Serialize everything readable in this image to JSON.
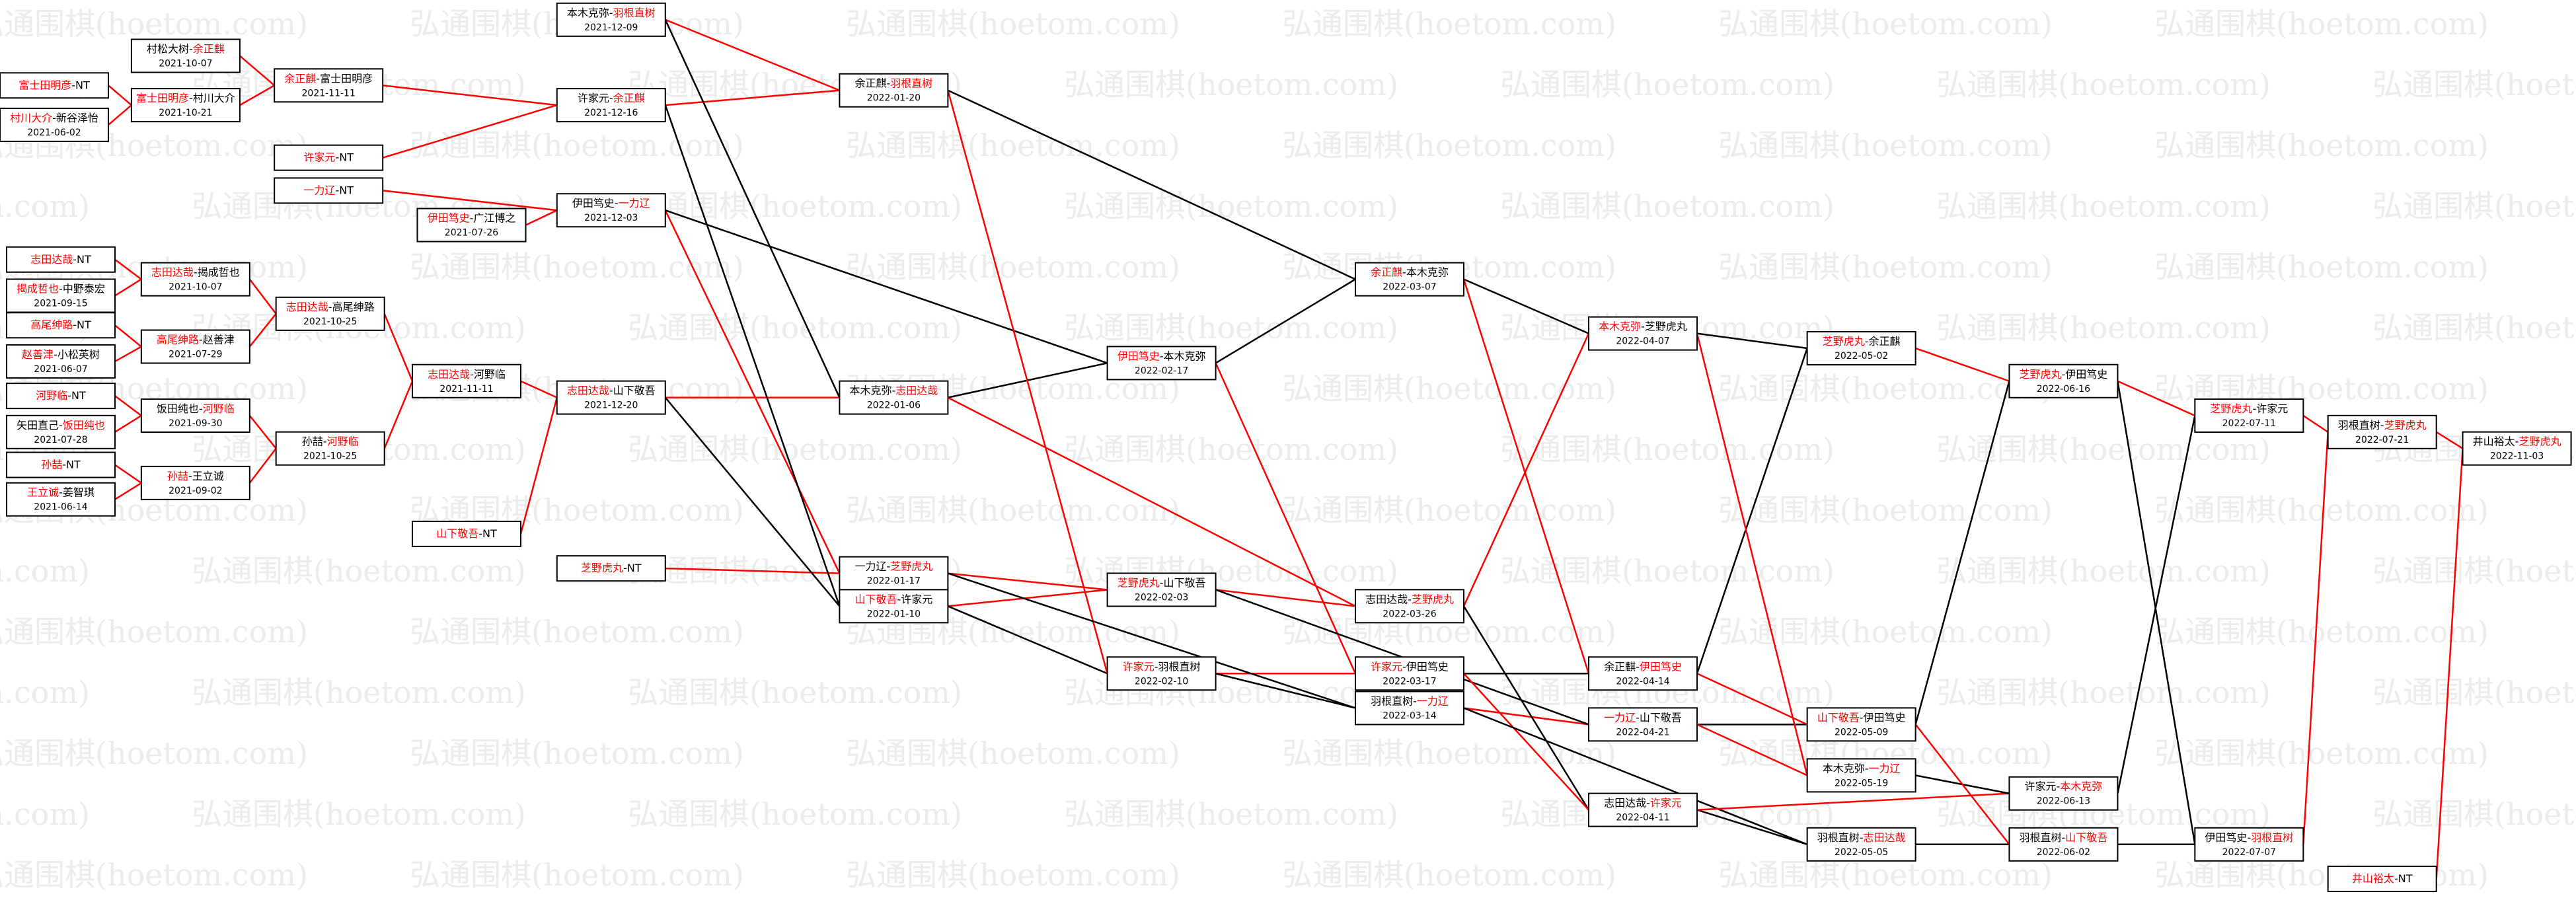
{
  "watermark": "弘通围棋(hoetom.com)",
  "separator": "-",
  "nodes": [
    {
      "players": [
        {
          "name": "富士田明彦",
          "color": "#ff0000"
        },
        {
          "name": "NT",
          "color": "#000000"
        }
      ]
    },
    {
      "players": [
        {
          "name": "村川大介",
          "color": "#ff0000"
        },
        {
          "name": "新谷泽怡",
          "color": "#000000"
        }
      ],
      "date": "2021-06-02"
    },
    {
      "players": [
        {
          "name": "村松大树",
          "color": "#000000"
        },
        {
          "name": "余正麒",
          "color": "#ff0000"
        }
      ],
      "date": "2021-10-07"
    },
    {
      "players": [
        {
          "name": "富士田明彦",
          "color": "#ff0000"
        },
        {
          "name": "村川大介",
          "color": "#000000"
        }
      ],
      "date": "2021-10-21"
    },
    {
      "players": [
        {
          "name": "余正麒",
          "color": "#ff0000"
        },
        {
          "name": "富士田明彦",
          "color": "#000000"
        }
      ],
      "date": "2021-11-11"
    },
    {
      "players": [
        {
          "name": "许家元",
          "color": "#ff0000"
        },
        {
          "name": "NT",
          "color": "#000000"
        }
      ]
    },
    {
      "players": [
        {
          "name": "一力辽",
          "color": "#ff0000"
        },
        {
          "name": "NT",
          "color": "#000000"
        }
      ]
    },
    {
      "players": [
        {
          "name": "伊田笃史",
          "color": "#ff0000"
        },
        {
          "name": "广江博之",
          "color": "#000000"
        }
      ],
      "date": "2021-07-26"
    },
    {
      "players": [
        {
          "name": "本木克弥",
          "color": "#000000"
        },
        {
          "name": "羽根直树",
          "color": "#ff0000"
        }
      ],
      "date": "2021-12-09"
    },
    {
      "players": [
        {
          "name": "许家元",
          "color": "#000000"
        },
        {
          "name": "余正麒",
          "color": "#ff0000"
        }
      ],
      "date": "2021-12-16"
    },
    {
      "players": [
        {
          "name": "伊田笃史",
          "color": "#000000"
        },
        {
          "name": "一力辽",
          "color": "#ff0000"
        }
      ],
      "date": "2021-12-03"
    },
    {
      "players": [
        {
          "name": "余正麒",
          "color": "#000000"
        },
        {
          "name": "羽根直树",
          "color": "#ff0000"
        }
      ],
      "date": "2022-01-20"
    },
    {
      "players": [
        {
          "name": "余正麒",
          "color": "#ff0000"
        },
        {
          "name": "本木克弥",
          "color": "#000000"
        }
      ],
      "date": "2022-03-07"
    },
    {
      "players": [
        {
          "name": "志田达哉",
          "color": "#ff0000"
        },
        {
          "name": "NT",
          "color": "#000000"
        }
      ]
    },
    {
      "players": [
        {
          "name": "揭成哲也",
          "color": "#ff0000"
        },
        {
          "name": "中野泰宏",
          "color": "#000000"
        }
      ],
      "date": "2021-09-15"
    },
    {
      "players": [
        {
          "name": "高尾绅路",
          "color": "#ff0000"
        },
        {
          "name": "NT",
          "color": "#000000"
        }
      ]
    },
    {
      "players": [
        {
          "name": "赵善津",
          "color": "#ff0000"
        },
        {
          "name": "小松英树",
          "color": "#000000"
        }
      ],
      "date": "2021-06-07"
    },
    {
      "players": [
        {
          "name": "河野临",
          "color": "#ff0000"
        },
        {
          "name": "NT",
          "color": "#000000"
        }
      ]
    },
    {
      "players": [
        {
          "name": "矢田直己",
          "color": "#000000"
        },
        {
          "name": "饭田纯也",
          "color": "#ff0000"
        }
      ],
      "date": "2021-07-28"
    },
    {
      "players": [
        {
          "name": "孙喆",
          "color": "#ff0000"
        },
        {
          "name": "NT",
          "color": "#000000"
        }
      ]
    },
    {
      "players": [
        {
          "name": "王立诚",
          "color": "#ff0000"
        },
        {
          "name": "姜智琪",
          "color": "#000000"
        }
      ],
      "date": "2021-06-14"
    },
    {
      "players": [
        {
          "name": "志田达哉",
          "color": "#ff0000"
        },
        {
          "name": "揭成哲也",
          "color": "#000000"
        }
      ],
      "date": "2021-10-07"
    },
    {
      "players": [
        {
          "name": "高尾绅路",
          "color": "#ff0000"
        },
        {
          "name": "赵善津",
          "color": "#000000"
        }
      ],
      "date": "2021-07-29"
    },
    {
      "players": [
        {
          "name": "饭田纯也",
          "color": "#000000"
        },
        {
          "name": "河野临",
          "color": "#ff0000"
        }
      ],
      "date": "2021-09-30"
    },
    {
      "players": [
        {
          "name": "孙喆",
          "color": "#ff0000"
        },
        {
          "name": "王立诚",
          "color": "#000000"
        }
      ],
      "date": "2021-09-02"
    },
    {
      "players": [
        {
          "name": "志田达哉",
          "color": "#ff0000"
        },
        {
          "name": "高尾绅路",
          "color": "#000000"
        }
      ],
      "date": "2021-10-25"
    },
    {
      "players": [
        {
          "name": "孙喆",
          "color": "#000000"
        },
        {
          "name": "河野临",
          "color": "#ff0000"
        }
      ],
      "date": "2021-10-25"
    },
    {
      "players": [
        {
          "name": "志田达哉",
          "color": "#ff0000"
        },
        {
          "name": "河野临",
          "color": "#000000"
        }
      ],
      "date": "2021-11-11"
    },
    {
      "players": [
        {
          "name": "山下敬吾",
          "color": "#ff0000"
        },
        {
          "name": "NT",
          "color": "#000000"
        }
      ]
    },
    {
      "players": [
        {
          "name": "志田达哉",
          "color": "#ff0000"
        },
        {
          "name": "山下敬吾",
          "color": "#000000"
        }
      ],
      "date": "2021-12-20"
    },
    {
      "players": [
        {
          "name": "芝野虎丸",
          "color": "#ff0000"
        },
        {
          "name": "NT",
          "color": "#000000"
        }
      ]
    },
    {
      "players": [
        {
          "name": "本木克弥",
          "color": "#000000"
        },
        {
          "name": "志田达哉",
          "color": "#ff0000"
        }
      ],
      "date": "2022-01-06"
    },
    {
      "players": [
        {
          "name": "一力辽",
          "color": "#000000"
        },
        {
          "name": "芝野虎丸",
          "color": "#ff0000"
        }
      ],
      "date": "2022-01-17"
    },
    {
      "players": [
        {
          "name": "山下敬吾",
          "color": "#ff0000"
        },
        {
          "name": "许家元",
          "color": "#000000"
        }
      ],
      "date": "2022-01-10"
    },
    {
      "players": [
        {
          "name": "伊田笃史",
          "color": "#ff0000"
        },
        {
          "name": "本木克弥",
          "color": "#000000"
        }
      ],
      "date": "2022-02-17"
    },
    {
      "players": [
        {
          "name": "芝野虎丸",
          "color": "#ff0000"
        },
        {
          "name": "山下敬吾",
          "color": "#000000"
        }
      ],
      "date": "2022-02-03"
    },
    {
      "players": [
        {
          "name": "许家元",
          "color": "#ff0000"
        },
        {
          "name": "羽根直树",
          "color": "#000000"
        }
      ],
      "date": "2022-02-10"
    },
    {
      "players": [
        {
          "name": "志田达哉",
          "color": "#000000"
        },
        {
          "name": "芝野虎丸",
          "color": "#ff0000"
        }
      ],
      "date": "2022-03-26"
    },
    {
      "players": [
        {
          "name": "许家元",
          "color": "#ff0000"
        },
        {
          "name": "伊田笃史",
          "color": "#000000"
        }
      ],
      "date": "2022-03-17"
    },
    {
      "players": [
        {
          "name": "羽根直树",
          "color": "#000000"
        },
        {
          "name": "一力辽",
          "color": "#ff0000"
        }
      ],
      "date": "2022-03-14"
    },
    {
      "players": [
        {
          "name": "本木克弥",
          "color": "#ff0000"
        },
        {
          "name": "芝野虎丸",
          "color": "#000000"
        }
      ],
      "date": "2022-04-07"
    },
    {
      "players": [
        {
          "name": "余正麒",
          "color": "#000000"
        },
        {
          "name": "伊田笃史",
          "color": "#ff0000"
        }
      ],
      "date": "2022-04-14"
    },
    {
      "players": [
        {
          "name": "一力辽",
          "color": "#ff0000"
        },
        {
          "name": "山下敬吾",
          "color": "#000000"
        }
      ],
      "date": "2022-04-21"
    },
    {
      "players": [
        {
          "name": "志田达哉",
          "color": "#000000"
        },
        {
          "name": "许家元",
          "color": "#ff0000"
        }
      ],
      "date": "2022-04-11"
    },
    {
      "players": [
        {
          "name": "芝野虎丸",
          "color": "#ff0000"
        },
        {
          "name": "余正麒",
          "color": "#000000"
        }
      ],
      "date": "2022-05-02"
    },
    {
      "players": [
        {
          "name": "山下敬吾",
          "color": "#ff0000"
        },
        {
          "name": "伊田笃史",
          "color": "#000000"
        }
      ],
      "date": "2022-05-09"
    },
    {
      "players": [
        {
          "name": "本木克弥",
          "color": "#000000"
        },
        {
          "name": "一力辽",
          "color": "#ff0000"
        }
      ],
      "date": "2022-05-19"
    },
    {
      "players": [
        {
          "name": "羽根直树",
          "color": "#000000"
        },
        {
          "name": "志田达哉",
          "color": "#ff0000"
        }
      ],
      "date": "2022-05-05"
    },
    {
      "players": [
        {
          "name": "芝野虎丸",
          "color": "#ff0000"
        },
        {
          "name": "伊田笃史",
          "color": "#000000"
        }
      ],
      "date": "2022-06-16"
    },
    {
      "players": [
        {
          "name": "许家元",
          "color": "#000000"
        },
        {
          "name": "本木克弥",
          "color": "#ff0000"
        }
      ],
      "date": "2022-06-13"
    },
    {
      "players": [
        {
          "name": "羽根直树",
          "color": "#000000"
        },
        {
          "name": "山下敬吾",
          "color": "#ff0000"
        }
      ],
      "date": "2022-06-02"
    },
    {
      "players": [
        {
          "name": "芝野虎丸",
          "color": "#ff0000"
        },
        {
          "name": "许家元",
          "color": "#000000"
        }
      ],
      "date": "2022-07-11"
    },
    {
      "players": [
        {
          "name": "伊田笃史",
          "color": "#000000"
        },
        {
          "name": "羽根直树",
          "color": "#ff0000"
        }
      ],
      "date": "2022-07-07"
    },
    {
      "players": [
        {
          "name": "羽根直树",
          "color": "#000000"
        },
        {
          "name": "芝野虎丸",
          "color": "#ff0000"
        }
      ],
      "date": "2022-07-21"
    },
    {
      "players": [
        {
          "name": "井山裕太",
          "color": "#000000"
        },
        {
          "name": "芝野虎丸",
          "color": "#ff0000"
        }
      ],
      "date": "2022-11-03"
    },
    {
      "players": [
        {
          "name": "井山裕太",
          "color": "#ff0000"
        },
        {
          "name": "NT",
          "color": "#000000"
        }
      ]
    }
  ]
}
